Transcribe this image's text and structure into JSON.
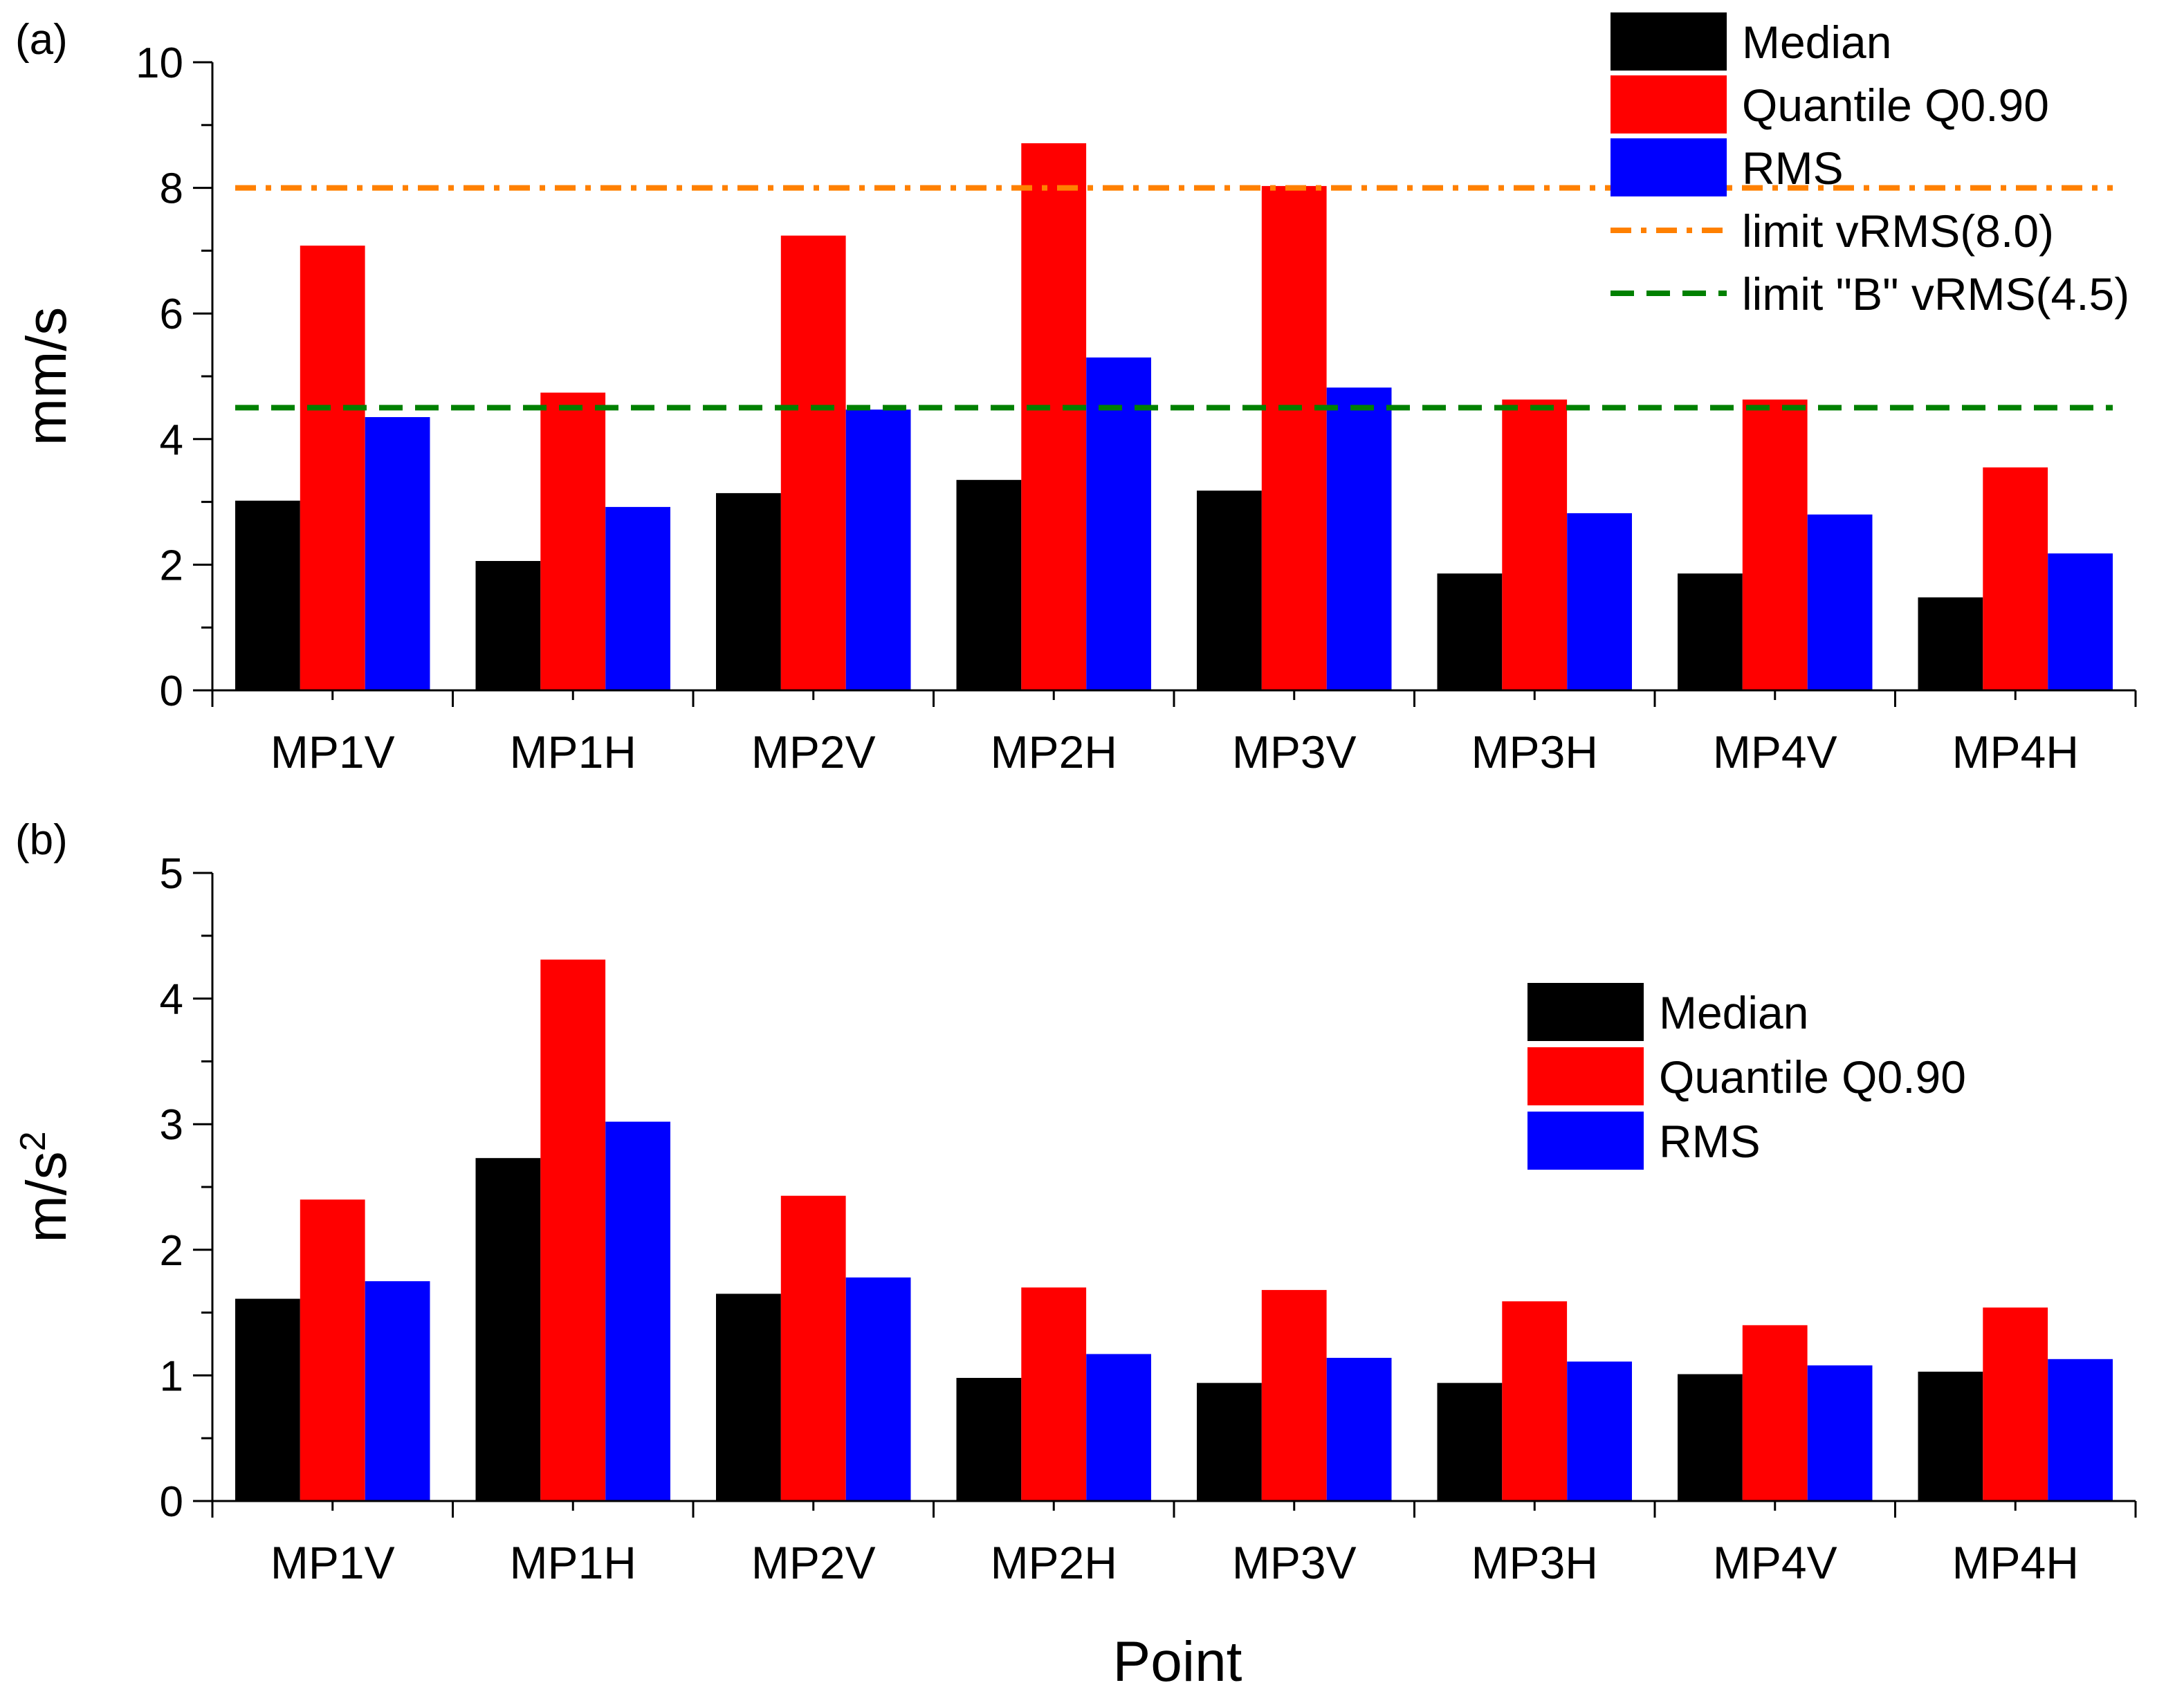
{
  "chart_data": [
    {
      "type": "bar",
      "panel_label": "(a)",
      "title": "",
      "xlabel": "",
      "ylabel": "mm/s",
      "ylim": [
        0,
        10
      ],
      "yticks": [
        "0",
        "2",
        "4",
        "6",
        "8",
        "10"
      ],
      "categories": [
        "MP1V",
        "MP1H",
        "MP2V",
        "MP2H",
        "MP3V",
        "MP3H",
        "MP4V",
        "MP4H"
      ],
      "series": [
        {
          "name": "Median",
          "color": "#000000",
          "values": [
            3.02,
            2.06,
            3.14,
            3.35,
            3.18,
            1.86,
            1.86,
            1.48
          ]
        },
        {
          "name": "Quantile Q0.90",
          "color": "#ff0000",
          "values": [
            7.08,
            4.74,
            7.24,
            8.71,
            8.03,
            4.63,
            4.63,
            3.55
          ]
        },
        {
          "name": "RMS",
          "color": "#0000ff",
          "values": [
            4.35,
            2.92,
            4.47,
            5.3,
            4.82,
            2.82,
            2.8,
            2.18
          ]
        }
      ],
      "reference_lines": [
        {
          "name": "limit vRMS(8.0)",
          "value": 8.0,
          "color": "#ff8000",
          "style": "dash-dot"
        },
        {
          "name": "limit \"B\" vRMS(4.5)",
          "value": 4.5,
          "color": "#008000",
          "style": "dashed"
        }
      ],
      "legend_position": "top-right"
    },
    {
      "type": "bar",
      "panel_label": "(b)",
      "title": "",
      "xlabel": "Point",
      "ylabel": "m/s",
      "ylabel_superscript": "2",
      "ylim": [
        0,
        5
      ],
      "yticks": [
        "0",
        "1",
        "2",
        "3",
        "4",
        "5"
      ],
      "categories": [
        "MP1V",
        "MP1H",
        "MP2V",
        "MP2H",
        "MP3V",
        "MP3H",
        "MP4V",
        "MP4H"
      ],
      "series": [
        {
          "name": "Median",
          "color": "#000000",
          "values": [
            1.61,
            2.73,
            1.65,
            0.98,
            0.94,
            0.94,
            1.01,
            1.03
          ]
        },
        {
          "name": "Quantile Q0.90",
          "color": "#ff0000",
          "values": [
            2.4,
            4.31,
            2.43,
            1.7,
            1.68,
            1.59,
            1.4,
            1.54
          ]
        },
        {
          "name": "RMS",
          "color": "#0000ff",
          "values": [
            1.75,
            3.02,
            1.78,
            1.17,
            1.14,
            1.11,
            1.08,
            1.13
          ]
        }
      ],
      "reference_lines": [],
      "legend_position": "upper-right"
    }
  ]
}
